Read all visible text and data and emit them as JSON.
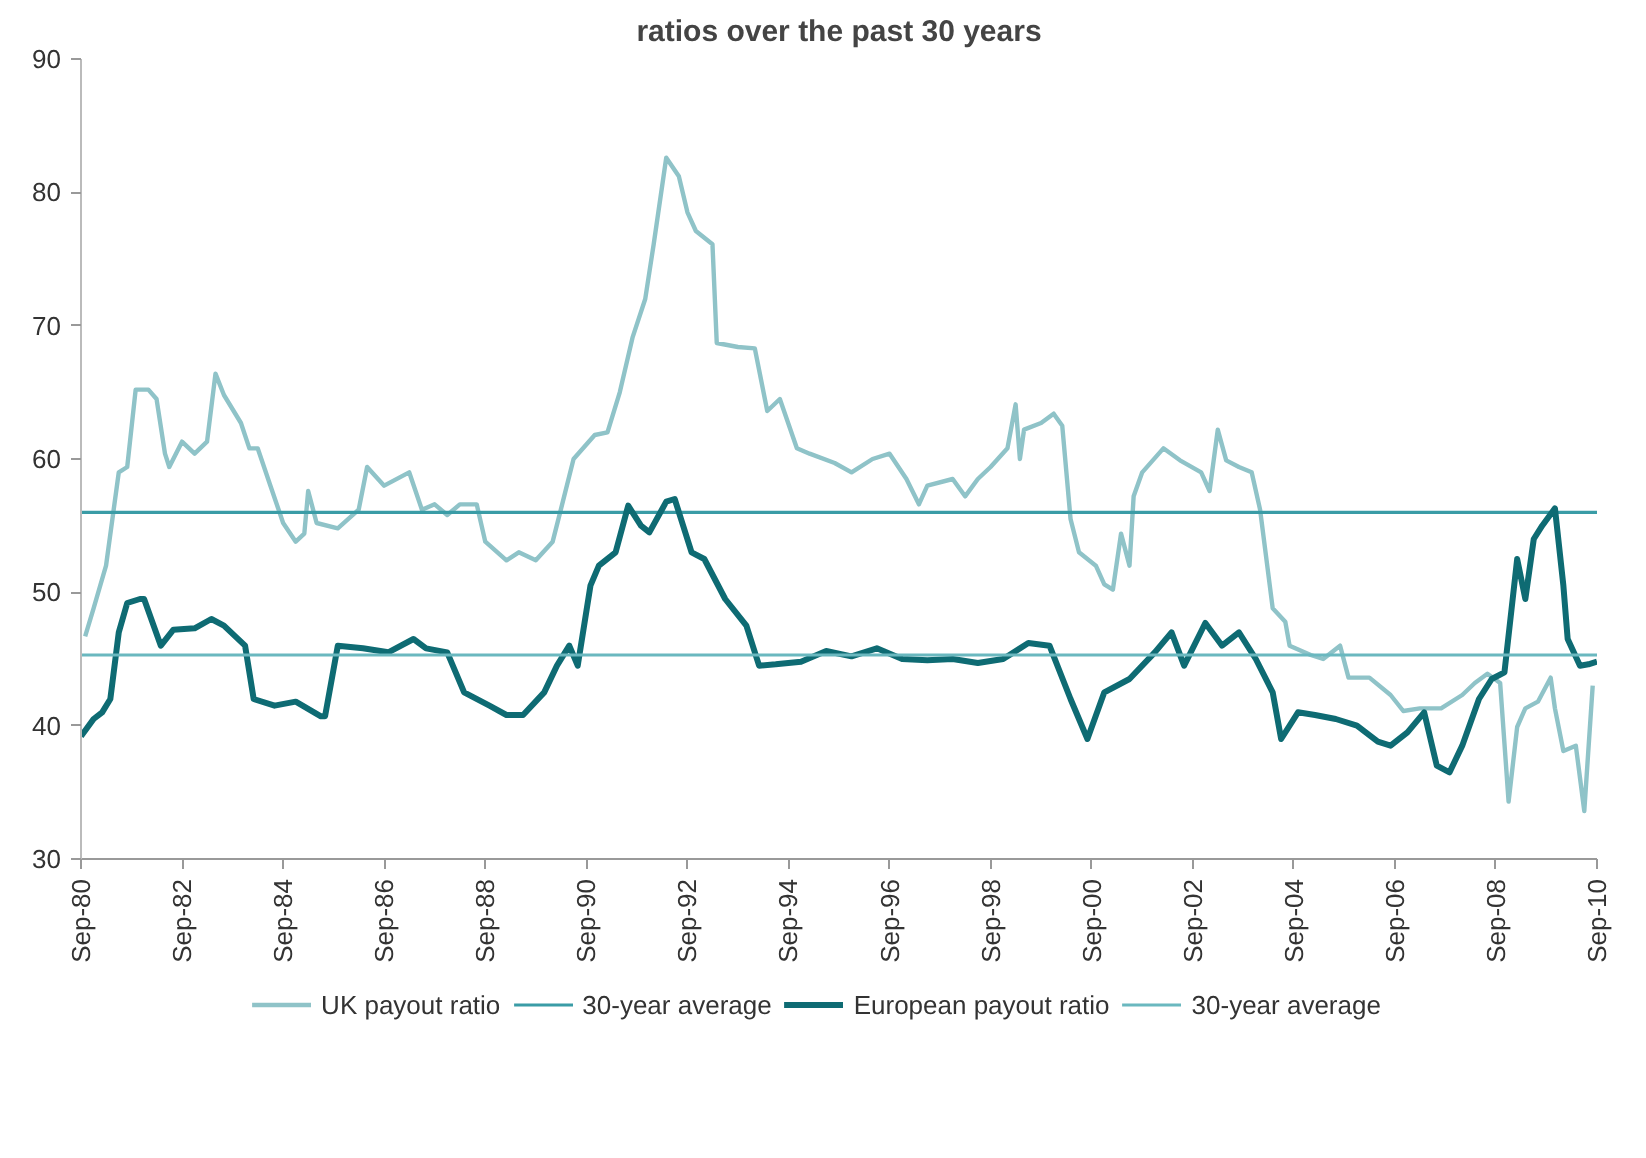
{
  "chart_data": {
    "type": "line",
    "title": "ratios over the past 30 years",
    "xlim": [
      "1980-09",
      "2010-09"
    ],
    "ylim": [
      30,
      90
    ],
    "yticks": [
      30,
      40,
      50,
      60,
      70,
      80,
      90
    ],
    "xticks": [
      {
        "value": "1980-09",
        "label": "Sep-80"
      },
      {
        "value": "1982-09",
        "label": "Sep-82"
      },
      {
        "value": "1984-09",
        "label": "Sep-84"
      },
      {
        "value": "1986-09",
        "label": "Sep-86"
      },
      {
        "value": "1988-09",
        "label": "Sep-88"
      },
      {
        "value": "1990-09",
        "label": "Sep-90"
      },
      {
        "value": "1992-09",
        "label": "Sep-92"
      },
      {
        "value": "1994-09",
        "label": "Sep-94"
      },
      {
        "value": "1996-09",
        "label": "Sep-96"
      },
      {
        "value": "1998-09",
        "label": "Sep-98"
      },
      {
        "value": "2000-09",
        "label": "Sep-00"
      },
      {
        "value": "2002-09",
        "label": "Sep-02"
      },
      {
        "value": "2004-09",
        "label": "Sep-04"
      },
      {
        "value": "2006-09",
        "label": "Sep-06"
      },
      {
        "value": "2008-09",
        "label": "Sep-08"
      },
      {
        "value": "2010-09",
        "label": "Sep-10"
      }
    ],
    "grid": false,
    "legend": "bottom",
    "marker": "none",
    "line_style": "solid",
    "series": [
      {
        "name": "UK payout ratio",
        "color": "#8fc3c8",
        "x": [
          "1980-10",
          "1980-12",
          "1981-03",
          "1981-06",
          "1981-08",
          "1981-10",
          "1982-01",
          "1982-03",
          "1982-05",
          "1982-06",
          "1982-09",
          "1982-12",
          "1983-03",
          "1983-05",
          "1983-07",
          "1983-11",
          "1984-01",
          "1984-03",
          "1984-06",
          "1984-09",
          "1984-12",
          "1985-02",
          "1985-03",
          "1985-05",
          "1985-10",
          "1986-03",
          "1986-05",
          "1986-09",
          "1987-03",
          "1987-06",
          "1987-09",
          "1987-12",
          "1988-03",
          "1988-07",
          "1988-09",
          "1989-02",
          "1989-05",
          "1989-09",
          "1990-01",
          "1990-03",
          "1990-06",
          "1990-11",
          "1991-02",
          "1991-05",
          "1991-08",
          "1991-11",
          "1992-01",
          "1992-04",
          "1992-07",
          "1992-09",
          "1992-11",
          "1993-03",
          "1993-04",
          "1993-09",
          "1994-01",
          "1994-04",
          "1994-07",
          "1994-11",
          "1995-02",
          "1995-08",
          "1995-12",
          "1996-05",
          "1996-09",
          "1997-01",
          "1997-04",
          "1997-06",
          "1997-12",
          "1998-03",
          "1998-06",
          "1998-09",
          "1999-01",
          "1999-03",
          "1999-04",
          "1999-05",
          "1999-09",
          "1999-12",
          "2000-02",
          "2000-04",
          "2000-06",
          "2000-10",
          "2000-12",
          "2001-02",
          "2001-04",
          "2001-06",
          "2001-07",
          "2001-09",
          "2002-02",
          "2002-06",
          "2002-11",
          "2003-01",
          "2003-03",
          "2003-05",
          "2003-08",
          "2003-11",
          "2004-01",
          "2004-04",
          "2004-07",
          "2004-08",
          "2005-01",
          "2005-04",
          "2005-08",
          "2005-10",
          "2006-03",
          "2006-08",
          "2006-11",
          "2007-03",
          "2007-08",
          "2008-01",
          "2008-04",
          "2008-07",
          "2008-10",
          "2008-12",
          "2009-02",
          "2009-04",
          "2009-07",
          "2009-10",
          "2009-11",
          "2010-01",
          "2010-04",
          "2010-06",
          "2010-08"
        ],
        "values": [
          46.7,
          48.8,
          52,
          59,
          59.4,
          65.2,
          65.2,
          64.5,
          60.4,
          59.4,
          61.3,
          60.4,
          61.3,
          66.4,
          64.8,
          62.7,
          60.8,
          60.8,
          58,
          55.2,
          53.8,
          54.4,
          57.6,
          55.2,
          54.8,
          56.2,
          59.4,
          58,
          59,
          56.2,
          56.6,
          55.8,
          56.6,
          56.6,
          53.8,
          52.4,
          53,
          52.4,
          53.8,
          56.2,
          60,
          61.8,
          62,
          65,
          69.1,
          72,
          76.1,
          82.6,
          81.2,
          78.5,
          77.1,
          76.1,
          68.7,
          68.4,
          68.3,
          63.6,
          64.5,
          60.8,
          60.4,
          59.7,
          59,
          60,
          60.4,
          58.5,
          56.6,
          58,
          58.5,
          57.2,
          58.5,
          59.4,
          60.8,
          64.1,
          60,
          62.2,
          62.7,
          63.4,
          62.5,
          55.5,
          53,
          52,
          50.6,
          50.2,
          54.4,
          52,
          57.2,
          59,
          60.8,
          59.9,
          59,
          57.6,
          62.2,
          59.9,
          59.4,
          59,
          56.2,
          48.8,
          47.8,
          46,
          45.3,
          45,
          46,
          43.6,
          43.6,
          42.3,
          41.1,
          41.3,
          41.3,
          42.3,
          43.2,
          43.9,
          43.2,
          34.3,
          39.9,
          41.3,
          41.8,
          43.6,
          41.3,
          38.1,
          38.5,
          33.6,
          43
        ]
      },
      {
        "name": "30-year average",
        "color": "#3a9ca6",
        "x": [
          "1980-09",
          "2010-09"
        ],
        "values": [
          56,
          56
        ]
      },
      {
        "name": "European payout ratio",
        "color": "#0e6b73",
        "x": [
          "1980-09",
          "1980-12",
          "1981-02",
          "1981-04",
          "1981-06",
          "1981-08",
          "1981-11",
          "1981-12",
          "1982-04",
          "1982-07",
          "1982-12",
          "1983-04",
          "1983-07",
          "1983-12",
          "1984-02",
          "1984-07",
          "1984-12",
          "1985-06",
          "1985-07",
          "1985-10",
          "1986-04",
          "1986-10",
          "1987-04",
          "1987-07",
          "1987-12",
          "1988-04",
          "1988-10",
          "1989-02",
          "1989-06",
          "1989-11",
          "1990-02",
          "1990-05",
          "1990-07",
          "1990-10",
          "1990-12",
          "1991-04",
          "1991-07",
          "1991-10",
          "1991-12",
          "1992-04",
          "1992-06",
          "1992-10",
          "1993-01",
          "1993-06",
          "1993-11",
          "1994-02",
          "1994-06",
          "1994-12",
          "1995-06",
          "1995-12",
          "1996-06",
          "1996-12",
          "1997-06",
          "1997-12",
          "1998-06",
          "1998-12",
          "1999-06",
          "1999-11",
          "2000-04",
          "2000-08",
          "2000-12",
          "2001-06",
          "2001-12",
          "2002-04",
          "2002-07",
          "2002-12",
          "2003-04",
          "2003-08",
          "2003-12",
          "2004-04",
          "2004-06",
          "2004-10",
          "2005-02",
          "2005-07",
          "2005-12",
          "2006-05",
          "2006-08",
          "2006-12",
          "2007-04",
          "2007-07",
          "2007-10",
          "2008-01",
          "2008-05",
          "2008-08",
          "2008-11",
          "2009-02",
          "2009-04",
          "2009-06",
          "2009-08",
          "2009-11",
          "2010-01",
          "2010-02",
          "2010-05",
          "2010-07",
          "2010-09"
        ],
        "values": [
          39.2,
          40.5,
          41,
          42,
          47,
          49.2,
          49.5,
          49.5,
          46,
          47.2,
          47.3,
          48,
          47.5,
          46,
          42,
          41.5,
          41.8,
          40.7,
          40.7,
          46,
          45.8,
          45.5,
          46.5,
          45.8,
          45.5,
          42.5,
          41.5,
          40.8,
          40.8,
          42.5,
          44.5,
          46,
          44.5,
          50.5,
          52,
          53,
          56.5,
          55,
          54.5,
          56.8,
          57,
          53,
          52.5,
          49.5,
          47.5,
          44.5,
          44.6,
          44.8,
          45.6,
          45.2,
          45.8,
          45,
          44.9,
          45,
          44.7,
          45,
          46.2,
          46,
          42,
          39,
          42.5,
          43.5,
          45.5,
          47,
          44.5,
          47.7,
          46,
          47,
          45,
          42.5,
          39,
          41,
          40.8,
          40.5,
          40,
          38.8,
          38.5,
          39.5,
          41,
          37,
          36.5,
          38.5,
          42,
          43.5,
          44,
          52.5,
          49.5,
          54,
          55,
          56.3,
          50.5,
          46.5,
          44.5,
          44.6,
          44.8
        ]
      },
      {
        "name": "30-year average",
        "color": "#6ab8bf",
        "x": [
          "1980-09",
          "2010-09"
        ],
        "values": [
          45.3,
          45.3
        ]
      }
    ]
  }
}
